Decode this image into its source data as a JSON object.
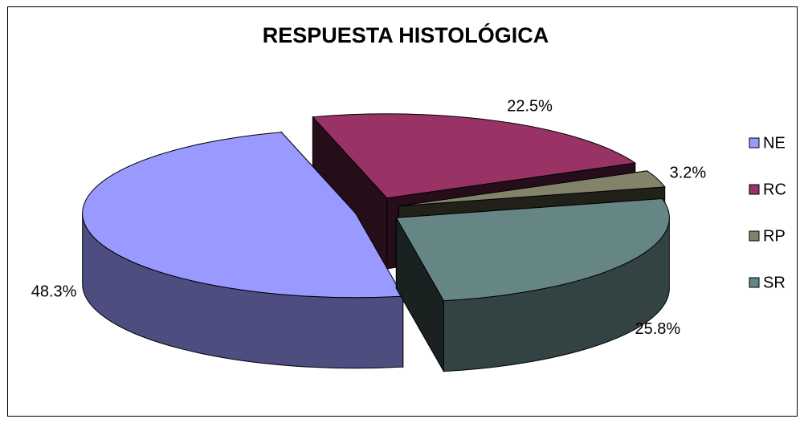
{
  "chart_data": {
    "type": "pie3d",
    "title": "RESPUESTA HISTOLÓGICA",
    "categories": [
      "NE",
      "RC",
      "RP",
      "SR"
    ],
    "values": [
      48.3,
      22.5,
      3.2,
      25.8
    ],
    "value_labels": [
      "48.3%",
      "22.5%",
      "3.2%",
      "25.8%"
    ],
    "colors": [
      "#9999ff",
      "#993366",
      "#838369",
      "#668585"
    ],
    "legend": "right"
  }
}
